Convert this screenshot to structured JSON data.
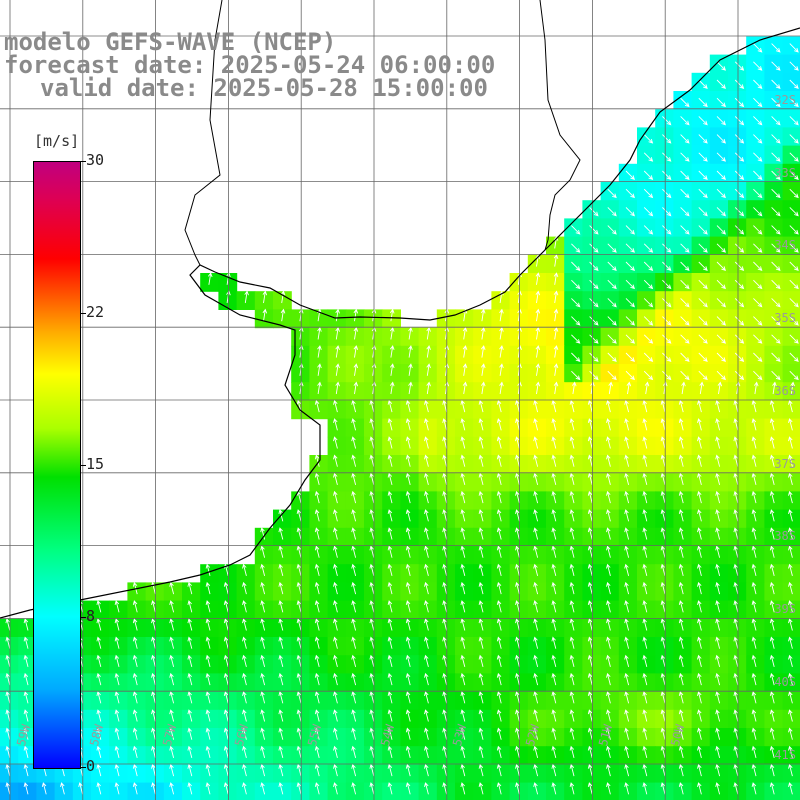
{
  "title": {
    "line1": "modelo GEFS-WAVE (NCEP)",
    "line2": "forecast date: 2025-05-24 06:00:00",
    "line3": "valid date: 2025-05-28 15:00:00"
  },
  "colorbar": {
    "unit": "[m/s]",
    "ticks": [
      "30",
      "22",
      "15",
      "8",
      "0"
    ],
    "min": 0,
    "max": 30,
    "colors": [
      "#0000ff",
      "#00aaff",
      "#00ffff",
      "#00ff80",
      "#00e000",
      "#aaff00",
      "#ffff00",
      "#ffaa00",
      "#ff5500",
      "#ff0000",
      "#dd0055",
      "#c0007f"
    ]
  },
  "lat_labels": [
    "32S",
    "33S",
    "34S",
    "35S",
    "36S",
    "37S",
    "38S",
    "39S",
    "40S",
    "41S"
  ],
  "lon_labels": [
    "59W",
    "58W",
    "57W",
    "56W",
    "55W",
    "54W",
    "53W",
    "52W",
    "51W",
    "50W"
  ],
  "map_colors": {
    "land": "#ffffff",
    "coast": "#000000",
    "grid": "#666666",
    "arrows": "#ffffff"
  }
}
